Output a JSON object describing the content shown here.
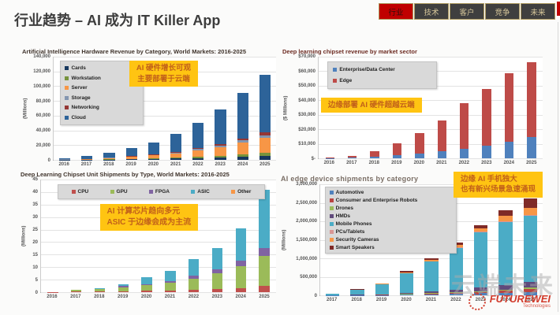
{
  "slide": {
    "title": "行业趋势 – AI 成为 IT Killer App",
    "tabs": [
      {
        "label": "行业",
        "active": true
      },
      {
        "label": "技术",
        "active": false
      },
      {
        "label": "客户",
        "active": false
      },
      {
        "label": "竞争",
        "active": false
      },
      {
        "label": "未来",
        "active": false
      }
    ],
    "watermark": "云端未来",
    "logo": {
      "name": "FUTUREWEI",
      "tagline": "Technologies"
    },
    "accent_red": "#c00000",
    "callout_bg": "#ffc412"
  },
  "chart_data": [
    {
      "type": "bar",
      "stacked": true,
      "title": "Artificial Intelligence Hardware Revenue by Category, World Markets: 2016-2025",
      "ylabel": "(Millions)",
      "ylim": [
        0,
        140000
      ],
      "yticks": [
        "140,000",
        "120,000",
        "100,000",
        "80,000",
        "60,000",
        "40,000",
        "20,000",
        "0"
      ],
      "grid": true,
      "legend_position": "top-left",
      "annotation": [
        "AI 硬件增长可观",
        "主要部署于云端"
      ],
      "categories": [
        "2016",
        "2017",
        "2018",
        "2019",
        "2020",
        "2021",
        "2022",
        "2023",
        "2024",
        "2025"
      ],
      "series": [
        {
          "name": "Cards",
          "color": "#17375E",
          "values": [
            100,
            250,
            500,
            800,
            1200,
            1700,
            2500,
            3400,
            4500,
            5700
          ]
        },
        {
          "name": "Workstation",
          "color": "#77933C",
          "values": [
            60,
            150,
            300,
            500,
            700,
            1000,
            1500,
            2000,
            2700,
            3500
          ]
        },
        {
          "name": "Server",
          "color": "#F79646",
          "values": [
            360,
            900,
            1800,
            2800,
            4300,
            6300,
            9000,
            12200,
            16400,
            20700
          ]
        },
        {
          "name": "Storage",
          "color": "#8496B0",
          "values": [
            60,
            150,
            300,
            500,
            700,
            1000,
            1500,
            2000,
            2700,
            3500
          ]
        },
        {
          "name": "Networking",
          "color": "#953735",
          "values": [
            60,
            150,
            300,
            500,
            700,
            1000,
            1500,
            2000,
            2700,
            3500
          ]
        },
        {
          "name": "Cloud",
          "color": "#2D6399",
          "values": [
            1360,
            3400,
            6800,
            10400,
            16400,
            24000,
            34000,
            46400,
            62000,
            78100
          ]
        }
      ]
    },
    {
      "type": "bar",
      "stacked": true,
      "title": "Deep learning chipset revenue by market sector",
      "ylabel": "($ Millions)",
      "ylim": [
        0,
        70000
      ],
      "yticks": [
        "$70,000",
        "$60,000",
        "$50,000",
        "$40,000",
        "$30,000",
        "$20,000",
        "$10,000",
        "$-"
      ],
      "grid": true,
      "legend_position": "top-left",
      "annotation": [
        "边缘部署 AI 硬件超越云端"
      ],
      "categories": [
        "2016",
        "2017",
        "2018",
        "2019",
        "2020",
        "2021",
        "2022",
        "2023",
        "2024",
        "2025"
      ],
      "series": [
        {
          "name": "Enterprise/Data Center",
          "color": "#4F81BD",
          "values": [
            100,
            400,
            1200,
            2000,
            3500,
            5000,
            6500,
            8500,
            11500,
            14500
          ]
        },
        {
          "name": "Edge",
          "color": "#BE4B48",
          "values": [
            200,
            1100,
            3800,
            8500,
            14000,
            21000,
            31500,
            39500,
            47000,
            51500
          ]
        }
      ]
    },
    {
      "type": "bar",
      "stacked": true,
      "title": "Deep Learning Chipset Unit Shipments by Type, World Markets: 2016-2025",
      "ylabel": "(Millions)",
      "ylim": [
        0,
        45
      ],
      "yticks": [
        "45",
        "40",
        "35",
        "30",
        "25",
        "20",
        "15",
        "10",
        "5",
        "0"
      ],
      "grid": true,
      "legend_position": "top-row",
      "annotation": [
        "AI 计算芯片趋向多元",
        "ASIC 于边缘会成为主流"
      ],
      "categories": [
        "2016",
        "2017",
        "2018",
        "2019",
        "2020",
        "2021",
        "2022",
        "2023",
        "2024",
        "2025"
      ],
      "series": [
        {
          "name": "CPU",
          "color": "#C0504D",
          "values": [
            0.1,
            0.2,
            0.3,
            0.4,
            0.5,
            0.7,
            0.9,
            1.2,
            1.7,
            2.5
          ]
        },
        {
          "name": "GPU",
          "color": "#9BBB59",
          "values": [
            0.15,
            0.6,
            0.9,
            1.6,
            2.2,
            3.0,
            4.5,
            6.3,
            8.8,
            12.0
          ]
        },
        {
          "name": "FPGA",
          "color": "#8064A2",
          "values": [
            0.02,
            0.1,
            0.15,
            0.4,
            0.6,
            0.8,
            1.2,
            1.6,
            2.2,
            3.0
          ]
        },
        {
          "name": "ASIC",
          "color": "#4BACC6",
          "values": [
            0.03,
            0.1,
            0.15,
            0.8,
            2.7,
            4.0,
            6.6,
            8.4,
            12.8,
            23.5
          ]
        },
        {
          "name": "Other",
          "color": "#F79646",
          "values": [
            0,
            0,
            0,
            0,
            0,
            0,
            0,
            0,
            0,
            0
          ]
        }
      ]
    },
    {
      "type": "bar",
      "stacked": true,
      "title": "AI edge device shipments by category",
      "ylabel": "(Millions)",
      "ylim": [
        0,
        3000000
      ],
      "yticks": [
        "3,000,000",
        "2,500,000",
        "2,000,000",
        "1,500,000",
        "1,000,000",
        "500,000",
        "0"
      ],
      "grid": true,
      "legend_position": "top-left",
      "annotation": [
        "边缘 AI 手机独大",
        "也有新兴场景急速涌现"
      ],
      "categories": [
        "2017",
        "2018",
        "2019",
        "2020",
        "2021",
        "2022",
        "2023",
        "2024",
        "2025"
      ],
      "series": [
        {
          "name": "Automotive",
          "color": "#4F81BD",
          "values": [
            2000,
            5000,
            10000,
            18000,
            28000,
            40000,
            55000,
            70000,
            90000
          ]
        },
        {
          "name": "Consumer and Enterprise Robots",
          "color": "#B94441",
          "values": [
            1000,
            3000,
            5000,
            10000,
            16000,
            24000,
            35000,
            50000,
            70000
          ]
        },
        {
          "name": "Drones",
          "color": "#9BBB59",
          "values": [
            1000,
            2000,
            4000,
            8000,
            12000,
            18000,
            25000,
            35000,
            50000
          ]
        },
        {
          "name": "HMDs",
          "color": "#604A7B",
          "values": [
            2000,
            5000,
            10000,
            25000,
            45000,
            70000,
            100000,
            130000,
            160000
          ]
        },
        {
          "name": "Mobile Phones",
          "color": "#4BACC6",
          "values": [
            40000,
            130000,
            270000,
            530000,
            810000,
            1130000,
            1480000,
            1700000,
            1780000
          ]
        },
        {
          "name": "PCs/Tablets",
          "color": "#D99694",
          "values": [
            1000,
            3000,
            5000,
            8000,
            12000,
            16000,
            20000,
            25000,
            30000
          ]
        },
        {
          "name": "Security Cameras",
          "color": "#F79646",
          "values": [
            2000,
            7000,
            16000,
            26000,
            42000,
            62000,
            85000,
            140000,
            190000
          ]
        },
        {
          "name": "Smart Speakers",
          "color": "#7F2A27",
          "values": [
            1000,
            5000,
            10000,
            25000,
            45000,
            70000,
            100000,
            150000,
            250000
          ]
        }
      ]
    }
  ]
}
